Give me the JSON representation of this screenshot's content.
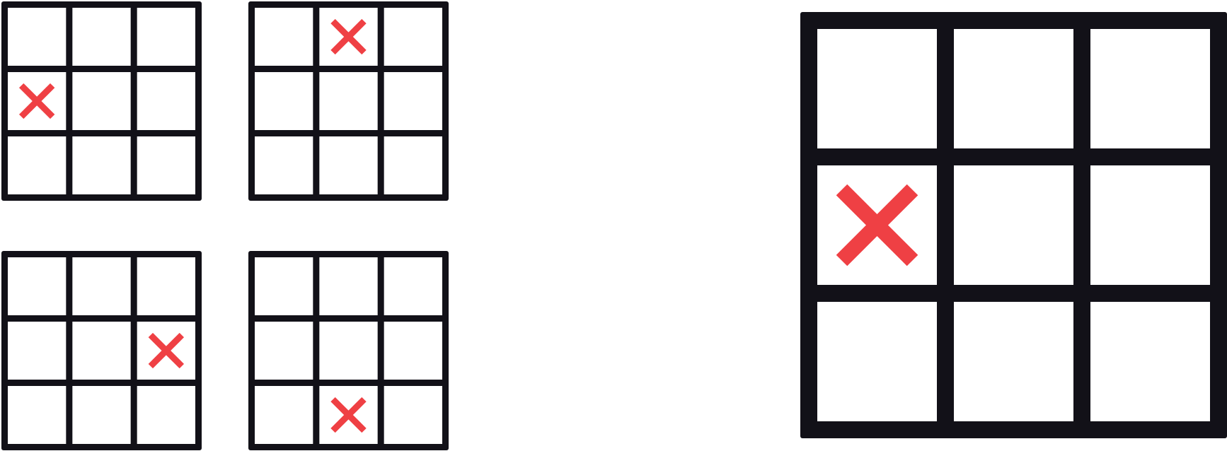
{
  "colors": {
    "grid": "#121118",
    "cell": "#ffffff",
    "mark": "#ef4044",
    "background": "#ffffff"
  },
  "boards": [
    {
      "name": "board-small-1",
      "rows": 3,
      "cols": 3,
      "marks": [
        {
          "row": 1,
          "col": 0,
          "symbol": "x"
        }
      ]
    },
    {
      "name": "board-small-2",
      "rows": 3,
      "cols": 3,
      "marks": [
        {
          "row": 0,
          "col": 1,
          "symbol": "x"
        }
      ]
    },
    {
      "name": "board-small-3",
      "rows": 3,
      "cols": 3,
      "marks": [
        {
          "row": 1,
          "col": 2,
          "symbol": "x"
        }
      ]
    },
    {
      "name": "board-small-4",
      "rows": 3,
      "cols": 3,
      "marks": [
        {
          "row": 2,
          "col": 1,
          "symbol": "x"
        }
      ]
    },
    {
      "name": "board-large",
      "rows": 3,
      "cols": 3,
      "marks": [
        {
          "row": 1,
          "col": 0,
          "symbol": "x"
        }
      ]
    }
  ]
}
